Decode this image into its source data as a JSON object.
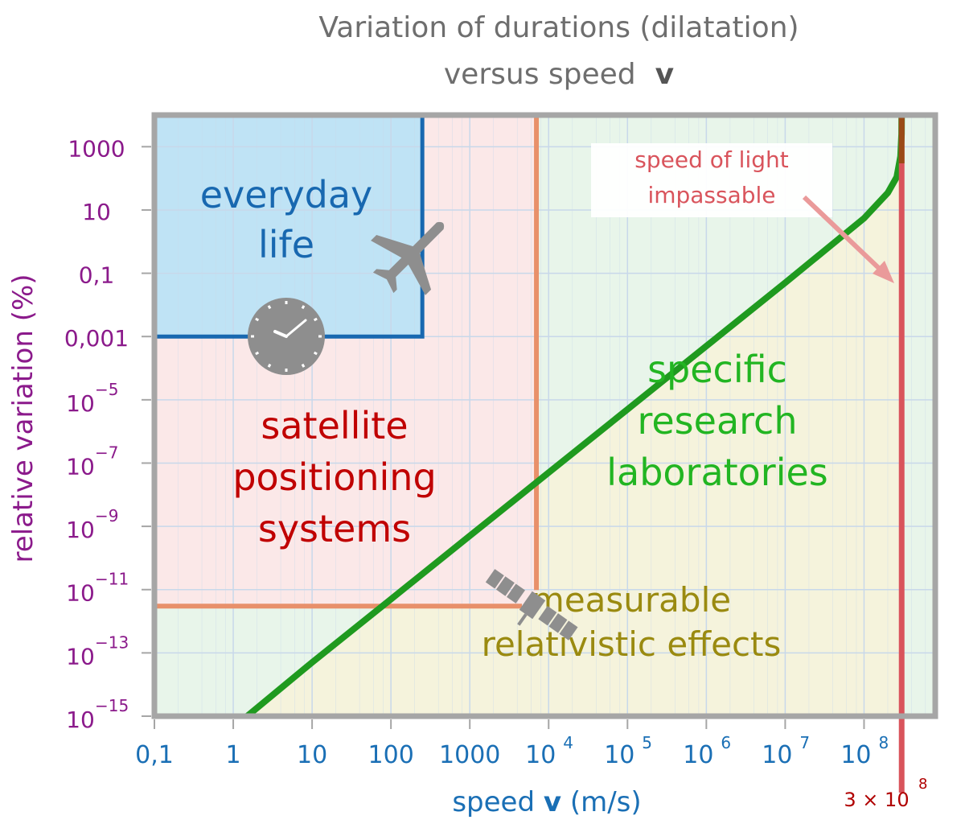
{
  "chart_data": {
    "type": "line",
    "title": "Variation of durations (dilatation)",
    "subtitle_prefix": "versus speed",
    "subtitle_symbol": "v",
    "xlabel_prefix": "speed",
    "xlabel_symbol": "v",
    "xlabel_unit": "(m/s)",
    "ylabel": "relative variation (%)",
    "x_scale": "log",
    "y_scale": "log",
    "xlim": [
      0.1,
      800000000
    ],
    "ylim": [
      1e-15,
      10000
    ],
    "x_ticks": [
      {
        "v": 0.1,
        "base": "0,1",
        "exp": ""
      },
      {
        "v": 1,
        "base": "1",
        "exp": ""
      },
      {
        "v": 10,
        "base": "10",
        "exp": ""
      },
      {
        "v": 100,
        "base": "100",
        "exp": ""
      },
      {
        "v": 1000,
        "base": "1000",
        "exp": ""
      },
      {
        "v": 10000,
        "base": "10",
        "exp": "4"
      },
      {
        "v": 100000,
        "base": "10",
        "exp": "5"
      },
      {
        "v": 1000000,
        "base": "10",
        "exp": "6"
      },
      {
        "v": 10000000,
        "base": "10",
        "exp": "7"
      },
      {
        "v": 100000000,
        "base": "10",
        "exp": "8"
      }
    ],
    "y_ticks": [
      {
        "v": 1000,
        "base": "1000",
        "exp": ""
      },
      {
        "v": 10,
        "base": "10",
        "exp": ""
      },
      {
        "v": 0.1,
        "base": "0,1",
        "exp": ""
      },
      {
        "v": 0.001,
        "base": "0,001",
        "exp": ""
      },
      {
        "v": 1e-05,
        "base": "10",
        "exp": "−5"
      },
      {
        "v": 1e-07,
        "base": "10",
        "exp": "−7"
      },
      {
        "v": 1e-09,
        "base": "10",
        "exp": "−9"
      },
      {
        "v": 1e-11,
        "base": "10",
        "exp": "−11"
      },
      {
        "v": 1e-13,
        "base": "10",
        "exp": "−13"
      },
      {
        "v": 1e-15,
        "base": "10",
        "exp": "−15"
      }
    ],
    "grid": true,
    "series": [
      {
        "kind": "dilation curve",
        "color": "#1f9a1f",
        "points": [
          [
            1.5,
            1e-15
          ],
          [
            10,
            5e-14
          ],
          [
            100,
            5e-12
          ],
          [
            1000,
            5e-10
          ],
          [
            10000,
            5e-08
          ],
          [
            100000,
            5e-06
          ],
          [
            1000000,
            0.0005
          ],
          [
            10000000,
            0.05
          ],
          [
            100000000,
            5.5
          ],
          [
            200000000,
            35
          ],
          [
            260000000,
            110
          ],
          [
            290000000,
            500
          ],
          [
            299000000,
            2500
          ],
          [
            299700000,
            10000
          ]
        ]
      },
      {
        "kind": "speed of light limit",
        "color": "#d9545c",
        "x": 300000000
      }
    ],
    "regions": [
      {
        "label_lines": [
          "everyday",
          "life"
        ],
        "color": "#1868b0",
        "x_max": 250,
        "y_min": 0.001
      },
      {
        "label_lines": [
          "satellite",
          "positioning",
          "systems"
        ],
        "color": "#c00000",
        "x_max": 7000,
        "y_min": 3e-12
      },
      {
        "label_lines": [
          "specific",
          "research",
          "laboratories"
        ],
        "color": "#22b522"
      },
      {
        "label_lines": [
          "measurable",
          "relativistic effects"
        ],
        "color": "#9a8a10"
      }
    ],
    "annotations": {
      "light_lines": [
        "speed of light",
        "impassable"
      ],
      "light_speed_base": "3 × 10",
      "light_speed_exp": "8"
    },
    "colors": {
      "axis_text_x": "#1a6fb5",
      "axis_text_y": "#8b1a8b",
      "everyday_fill": "#bfe3f5",
      "satellite_fill": "#fbe8e8",
      "lab_fill": "#e8f5ea",
      "effects_fill": "#f5f3dc",
      "frame": "#a6a6a6",
      "grid": "#c8d8ea",
      "satellite_line": "#e8906a",
      "everyday_line": "#1868b0",
      "icon_gray": "#8e8e8e"
    },
    "icons": [
      "airplane-icon",
      "clock-icon",
      "satellite-icon"
    ]
  }
}
